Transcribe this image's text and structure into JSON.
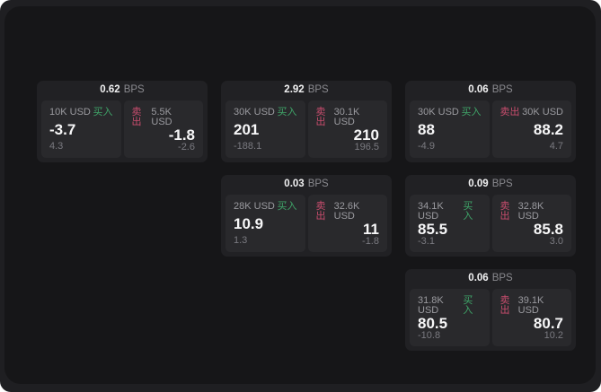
{
  "labels": {
    "buy": "买入",
    "sell": "卖出",
    "bps_unit": "BPS"
  },
  "colors": {
    "buy_green": "#3fa569",
    "sell_red": "#c94d6e",
    "surface_bg": "#161618",
    "frame_bg": "#1f1f22",
    "card_bg": "#212124",
    "panel_bg": "#29292c",
    "value_white": "#f7f7f8",
    "label_gray": "#9a9a9f",
    "sub_gray": "#7a7a80"
  },
  "cards": [
    {
      "bps": "0.62",
      "buy_amount": "10K USD",
      "buy_value": "-3.7",
      "buy_sub": "4.3",
      "sell_amount": "5.5K USD",
      "sell_value": "-1.8",
      "sell_sub": "-2.6"
    },
    {
      "bps": "2.92",
      "buy_amount": "30K USD",
      "buy_value": "201",
      "buy_sub": "-188.1",
      "sell_amount": "30.1K USD",
      "sell_value": "210",
      "sell_sub": "196.5"
    },
    {
      "bps": "0.06",
      "buy_amount": "30K USD",
      "buy_value": "88",
      "buy_sub": "-4.9",
      "sell_amount": "30K USD",
      "sell_value": "88.2",
      "sell_sub": "4.7"
    },
    {
      "bps": "0.03",
      "buy_amount": "28K USD",
      "buy_value": "10.9",
      "buy_sub": "1.3",
      "sell_amount": "32.6K USD",
      "sell_value": "11",
      "sell_sub": "-1.8"
    },
    {
      "bps": "0.09",
      "buy_amount": "34.1K USD",
      "buy_value": "85.5",
      "buy_sub": "-3.1",
      "sell_amount": "32.8K USD",
      "sell_value": "85.8",
      "sell_sub": "3.0"
    },
    {
      "bps": "0.06",
      "buy_amount": "31.8K USD",
      "buy_value": "80.5",
      "buy_sub": "-10.8",
      "sell_amount": "39.1K USD",
      "sell_value": "80.7",
      "sell_sub": "10.2"
    }
  ]
}
